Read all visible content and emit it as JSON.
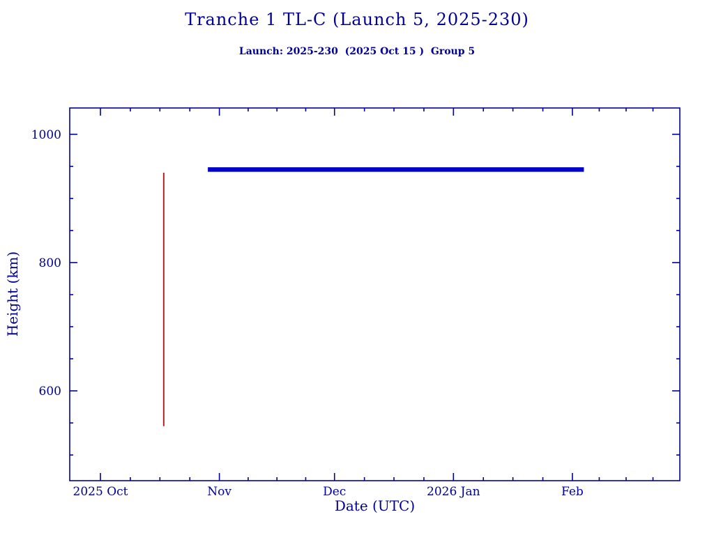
{
  "page": {
    "background": "#ffffff",
    "text_color": "#000099"
  },
  "chart_data": {
    "type": "line",
    "title": "Tranche 1 TL-C (Launch 5, 2025-230)",
    "subtitle": "Launch: 2025-230  (2025 Oct 15 )  Group 5",
    "xlabel": "Date (UTC)",
    "ylabel": "Height (km)",
    "axis_color": "#000099",
    "text_color": "#000099",
    "grid": false,
    "legend": "none",
    "x_unit": "days since 2025 Oct 1",
    "xlim": [
      -8,
      151
    ],
    "ylim": [
      460,
      1041
    ],
    "x_ticks": [
      {
        "value": 0,
        "label": "2025 Oct"
      },
      {
        "value": 31,
        "label": "Nov"
      },
      {
        "value": 61,
        "label": "Dec"
      },
      {
        "value": 92,
        "label": "2026 Jan"
      },
      {
        "value": 123,
        "label": "Feb"
      }
    ],
    "x_minor_ticks": [
      7.8,
      15.5,
      23.3,
      38.5,
      46,
      53.5,
      68.8,
      76.5,
      84.3,
      99.8,
      107.5,
      115.3,
      130,
      137,
      144
    ],
    "y_ticks": [
      {
        "value": 600,
        "label": "600"
      },
      {
        "value": 800,
        "label": "800"
      },
      {
        "value": 1000,
        "label": "1000"
      }
    ],
    "y_minor_ticks": [
      500,
      550,
      650,
      700,
      750,
      850,
      900,
      950
    ],
    "series": [
      {
        "name": "launch-ascent-red-vertical",
        "color": "#b22222",
        "width": 2,
        "points": [
          [
            16.5,
            545
          ],
          [
            16.5,
            940
          ]
        ]
      },
      {
        "name": "constellation-height-blue-horizontal",
        "color": "#0000cc",
        "width": 6.5,
        "points": [
          [
            28,
            945
          ],
          [
            126,
            945
          ]
        ]
      }
    ]
  }
}
